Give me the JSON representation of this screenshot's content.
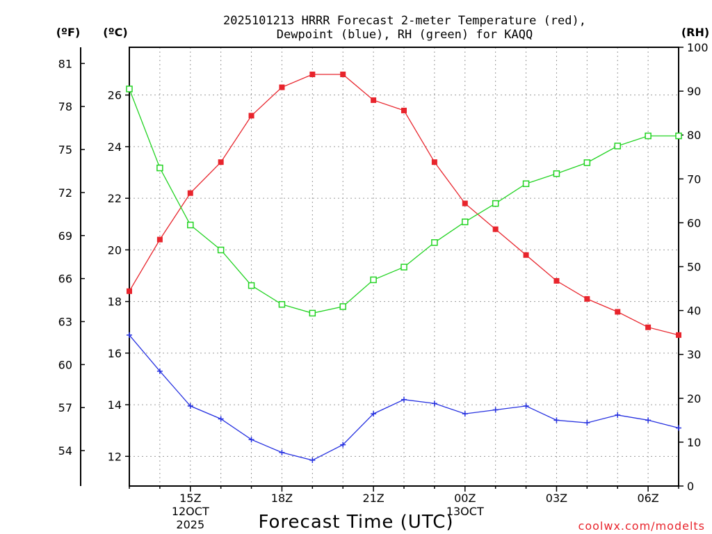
{
  "chart_data": {
    "type": "line",
    "title_line1": "2025101213 HRRR Forecast 2-meter Temperature (red),",
    "title_line2": "Dewpoint (blue), RH (green) for KAQQ",
    "xlabel": "Forecast Time (UTC)",
    "unit_f": "(ºF)",
    "unit_c": "(ºC)",
    "unit_rh": "(RH)",
    "watermark": "coolwx.com/modelts",
    "x_hours": [
      13,
      14,
      15,
      16,
      17,
      18,
      19,
      20,
      21,
      22,
      23,
      24,
      25,
      26,
      27,
      28,
      29,
      30,
      31
    ],
    "xlim": [
      13,
      31
    ],
    "x_ticks": [
      {
        "hour": 15,
        "lines": [
          "15Z",
          "12OCT",
          "2025"
        ]
      },
      {
        "hour": 18,
        "lines": [
          "18Z"
        ]
      },
      {
        "hour": 21,
        "lines": [
          "21Z"
        ]
      },
      {
        "hour": 24,
        "lines": [
          "00Z",
          "13OCT"
        ]
      },
      {
        "hour": 27,
        "lines": [
          "03Z"
        ]
      },
      {
        "hour": 30,
        "lines": [
          "06Z"
        ]
      }
    ],
    "ylim_c": [
      10.85,
      27.85
    ],
    "yticks_c": [
      12,
      14,
      16,
      18,
      20,
      22,
      24,
      26
    ],
    "yticks_f": [
      54,
      57,
      60,
      63,
      66,
      69,
      72,
      75,
      78,
      81
    ],
    "ylim_rh": [
      0,
      100
    ],
    "yticks_rh": [
      0,
      10,
      20,
      30,
      40,
      50,
      60,
      70,
      80,
      90,
      100
    ],
    "series": [
      {
        "name": "Temperature",
        "unit": "C",
        "color": "#e8242c",
        "marker": "filled-square",
        "values": [
          18.4,
          20.4,
          22.2,
          23.4,
          25.2,
          26.3,
          26.8,
          26.8,
          25.8,
          25.4,
          23.4,
          21.8,
          20.8,
          19.8,
          18.8,
          18.1,
          17.6,
          17.0,
          16.7
        ]
      },
      {
        "name": "Dewpoint",
        "unit": "C",
        "color": "#2530e0",
        "marker": "plus",
        "values": [
          16.7,
          15.3,
          13.95,
          13.45,
          12.65,
          12.15,
          11.85,
          12.45,
          13.65,
          14.2,
          14.05,
          13.65,
          13.8,
          13.95,
          13.4,
          13.3,
          13.6,
          13.4,
          13.1
        ]
      },
      {
        "name": "RH",
        "unit": "%",
        "color": "#22d322",
        "marker": "open-square",
        "values": [
          90.5,
          72.5,
          59.5,
          53.8,
          45.7,
          41.4,
          39.4,
          40.9,
          47.0,
          49.9,
          55.5,
          60.2,
          64.4,
          68.9,
          71.2,
          73.7,
          77.5,
          79.8,
          79.8
        ]
      }
    ]
  }
}
